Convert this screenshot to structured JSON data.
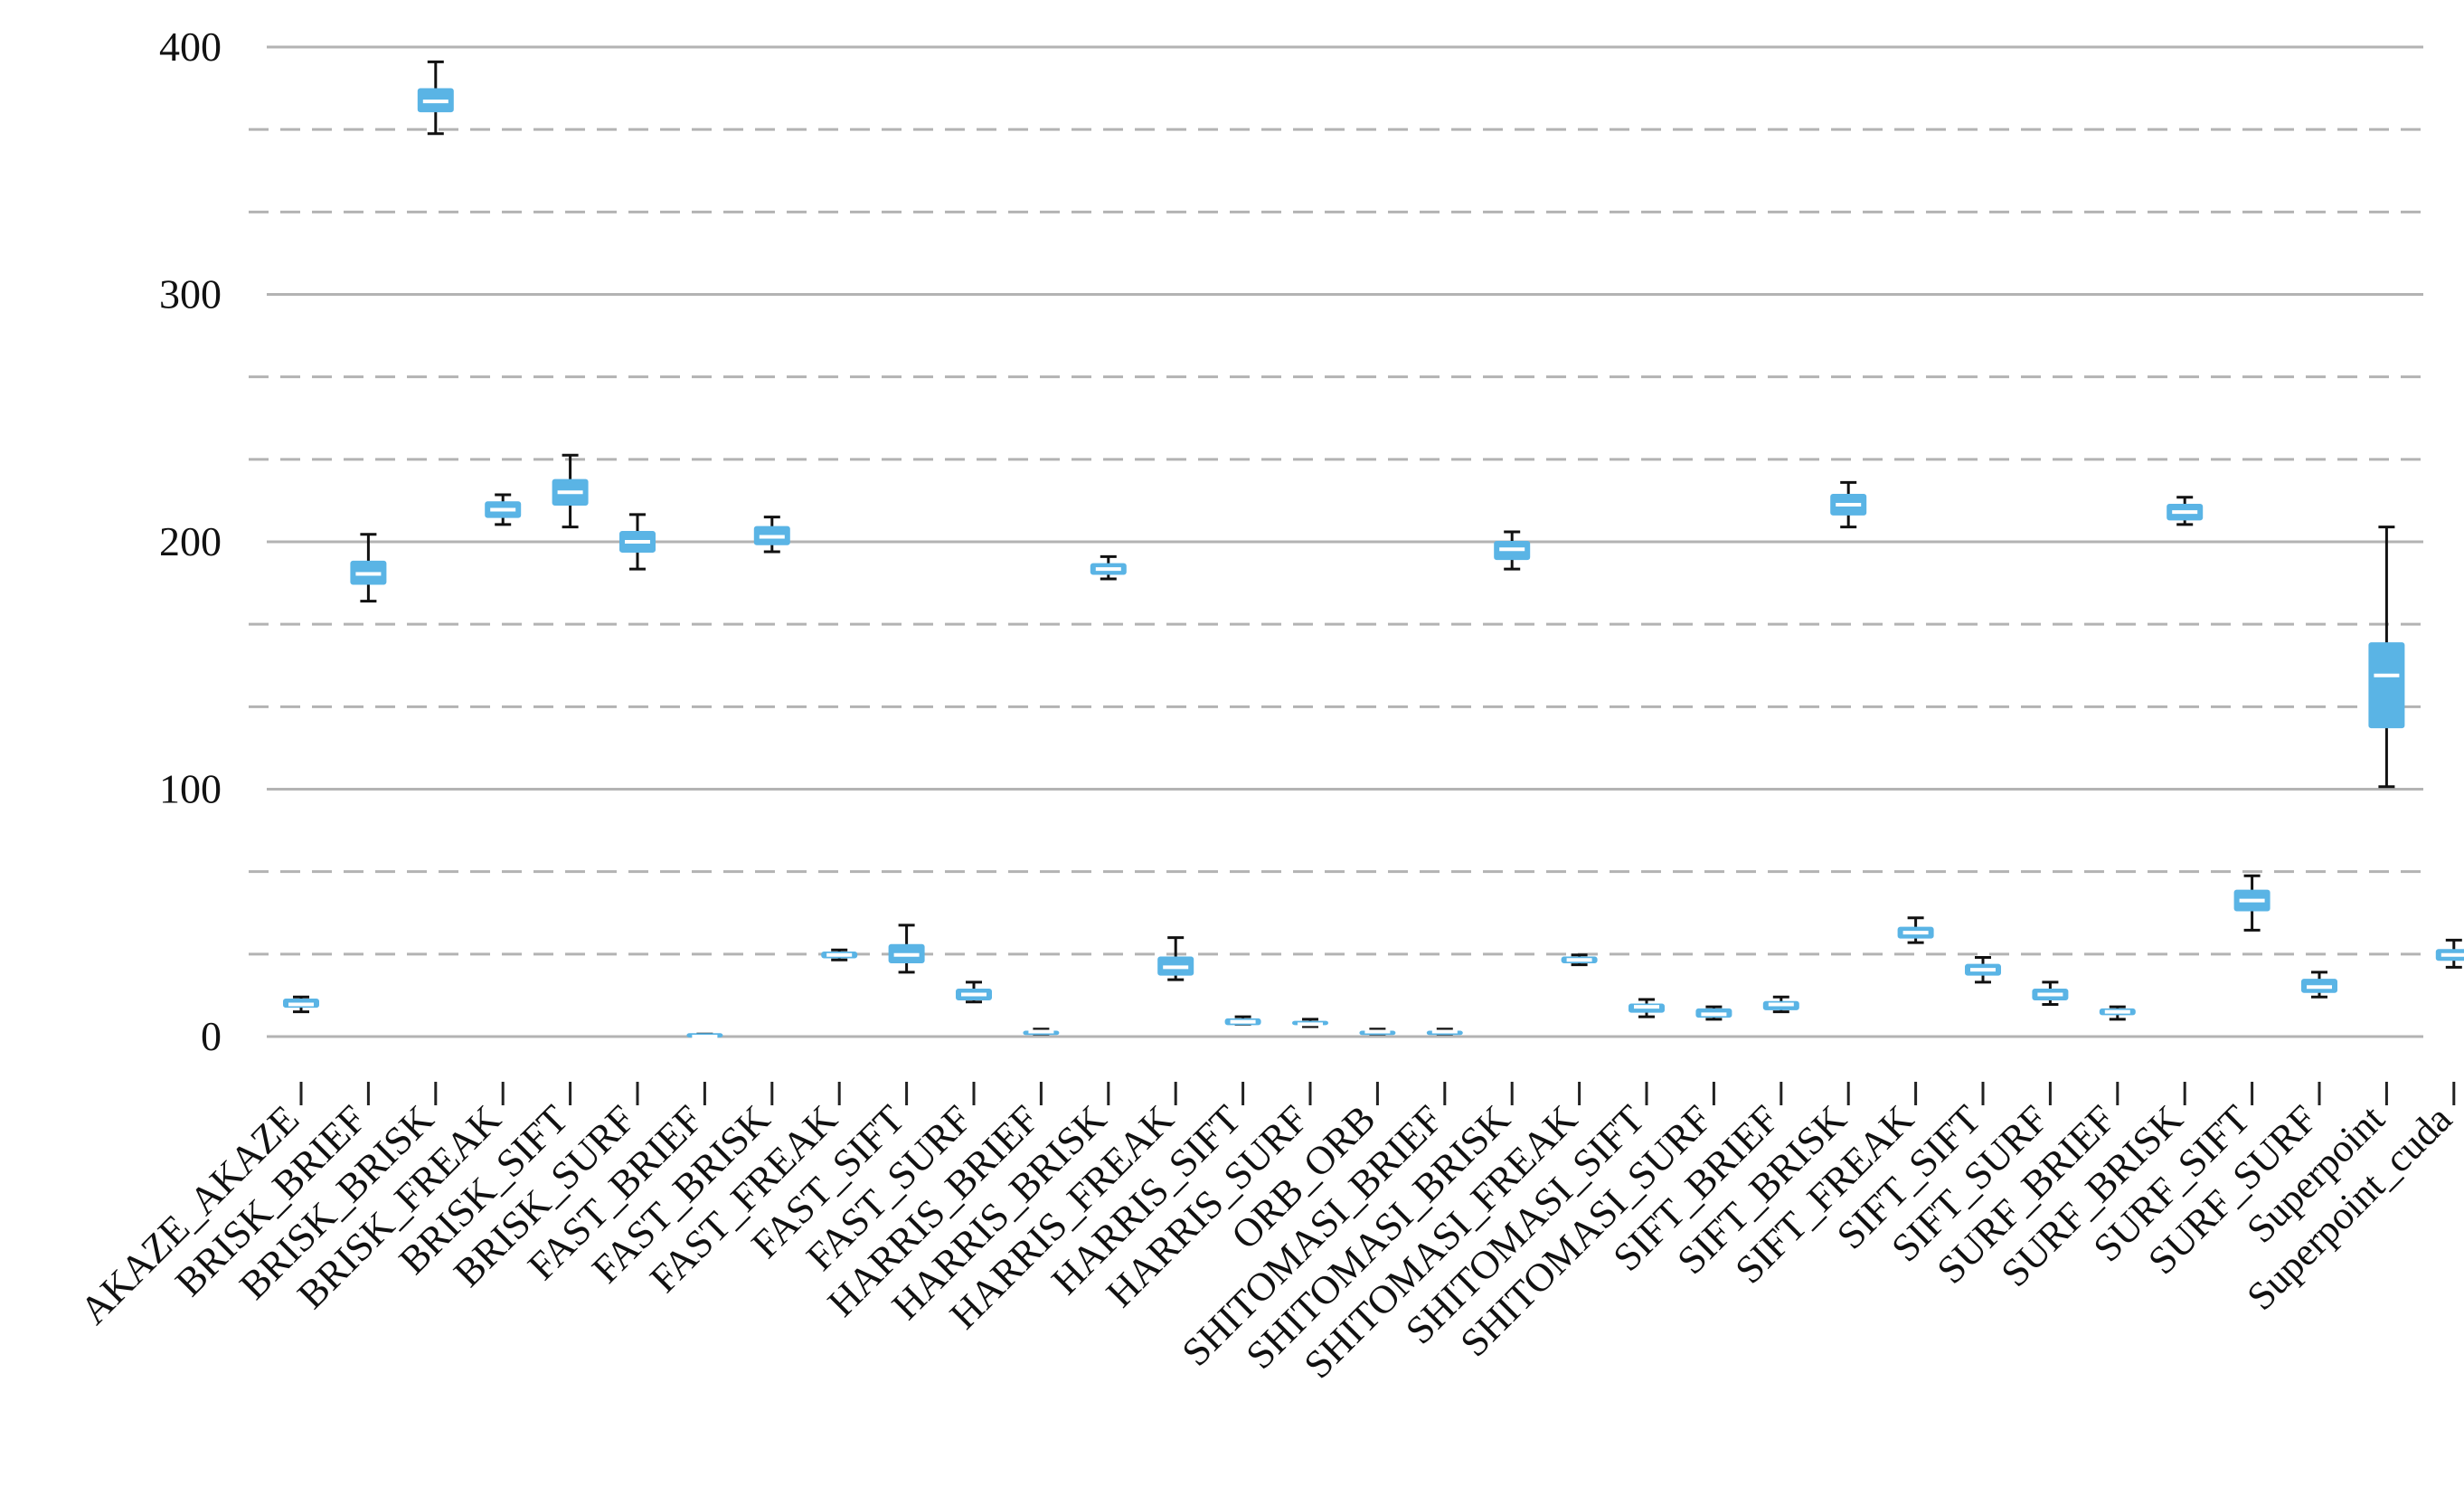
{
  "chart_data": {
    "type": "box",
    "title": "",
    "xlabel": "",
    "ylabel": "",
    "ylim": [
      0,
      400
    ],
    "yticks": [
      0,
      100,
      200,
      300,
      400
    ],
    "grid": "major solid, minor dashed",
    "box_color": "#5ab4e5",
    "categories": [
      "AKAZE_AKAZE",
      "BRISK_BRIEF",
      "BRISK_BRISK",
      "BRISK_FREAK",
      "BRISK_SIFT",
      "BRISK_SURF",
      "FAST_BRIEF",
      "FAST_BRISK",
      "FAST_FREAK",
      "FAST_SIFT",
      "FAST_SURF",
      "HARRIS_BRIEF",
      "HARRIS_BRISK",
      "HARRIS_FREAK",
      "HARRIS_SIFT",
      "HARRIS_SURF",
      "ORB_ORB",
      "SHITOMASI_BRIEF",
      "SHITOMASI_BRISK",
      "SHITOMASI_FREAK",
      "SHITOMASI_SIFT",
      "SHITOMASI_SURF",
      "SIFT_BRIEF",
      "SIFT_BRISK",
      "SIFT_FREAK",
      "SIFT_SIFT",
      "SIFT_SURF",
      "SURF_BRIEF",
      "SURF_BRISK",
      "SURF_SIFT",
      "SURF_SURF",
      "Superpoint",
      "Superpoint_cuda"
    ],
    "boxes": [
      {
        "min": 10,
        "q1": 12,
        "median": 13,
        "q3": 15,
        "max": 16
      },
      {
        "min": 176,
        "q1": 183,
        "median": 187,
        "q3": 192,
        "max": 203
      },
      {
        "min": 365,
        "q1": 374,
        "median": 378,
        "q3": 383,
        "max": 394
      },
      {
        "min": 207,
        "q1": 210,
        "median": 213,
        "q3": 216,
        "max": 219
      },
      {
        "min": 206,
        "q1": 215,
        "median": 220,
        "q3": 225,
        "max": 235
      },
      {
        "min": 189,
        "q1": 196,
        "median": 200,
        "q3": 204,
        "max": 211
      },
      {
        "min": 0,
        "q1": 0,
        "median": 0,
        "q3": 1,
        "max": 1
      },
      {
        "min": 196,
        "q1": 199,
        "median": 202,
        "q3": 206,
        "max": 210
      },
      {
        "min": 31,
        "q1": 32,
        "median": 33,
        "q3": 34,
        "max": 35
      },
      {
        "min": 26,
        "q1": 30,
        "median": 33,
        "q3": 37,
        "max": 45
      },
      {
        "min": 14,
        "q1": 15,
        "median": 17,
        "q3": 19,
        "max": 22
      },
      {
        "min": 1,
        "q1": 1,
        "median": 2,
        "q3": 2,
        "max": 3
      },
      {
        "min": 185,
        "q1": 187,
        "median": 189,
        "q3": 191,
        "max": 194
      },
      {
        "min": 23,
        "q1": 25,
        "median": 28,
        "q3": 32,
        "max": 40
      },
      {
        "min": 5,
        "q1": 5,
        "median": 6,
        "q3": 7,
        "max": 8
      },
      {
        "min": 4,
        "q1": 5,
        "median": 5,
        "q3": 6,
        "max": 7
      },
      {
        "min": 1,
        "q1": 1,
        "median": 2,
        "q3": 2,
        "max": 3
      },
      {
        "min": 1,
        "q1": 1,
        "median": 2,
        "q3": 2,
        "max": 3
      },
      {
        "min": 189,
        "q1": 193,
        "median": 197,
        "q3": 200,
        "max": 204
      },
      {
        "min": 29,
        "q1": 30,
        "median": 31,
        "q3": 32,
        "max": 33
      },
      {
        "min": 8,
        "q1": 10,
        "median": 12,
        "q3": 13,
        "max": 15
      },
      {
        "min": 7,
        "q1": 8,
        "median": 9,
        "q3": 11,
        "max": 12
      },
      {
        "min": 10,
        "q1": 11,
        "median": 13,
        "q3": 14,
        "max": 16
      },
      {
        "min": 206,
        "q1": 211,
        "median": 215,
        "q3": 219,
        "max": 224
      },
      {
        "min": 38,
        "q1": 40,
        "median": 42,
        "q3": 44,
        "max": 48
      },
      {
        "min": 22,
        "q1": 25,
        "median": 27,
        "q3": 29,
        "max": 32
      },
      {
        "min": 13,
        "q1": 15,
        "median": 17,
        "q3": 19,
        "max": 22
      },
      {
        "min": 7,
        "q1": 9,
        "median": 10,
        "q3": 11,
        "max": 12
      },
      {
        "min": 207,
        "q1": 209,
        "median": 212,
        "q3": 215,
        "max": 218
      },
      {
        "min": 43,
        "q1": 51,
        "median": 55,
        "q3": 59,
        "max": 65
      },
      {
        "min": 16,
        "q1": 18,
        "median": 20,
        "q3": 23,
        "max": 26
      },
      {
        "min": 101,
        "q1": 125,
        "median": 146,
        "q3": 159,
        "max": 206
      },
      {
        "min": 28,
        "q1": 31,
        "median": 33,
        "q3": 35,
        "max": 39
      }
    ]
  }
}
